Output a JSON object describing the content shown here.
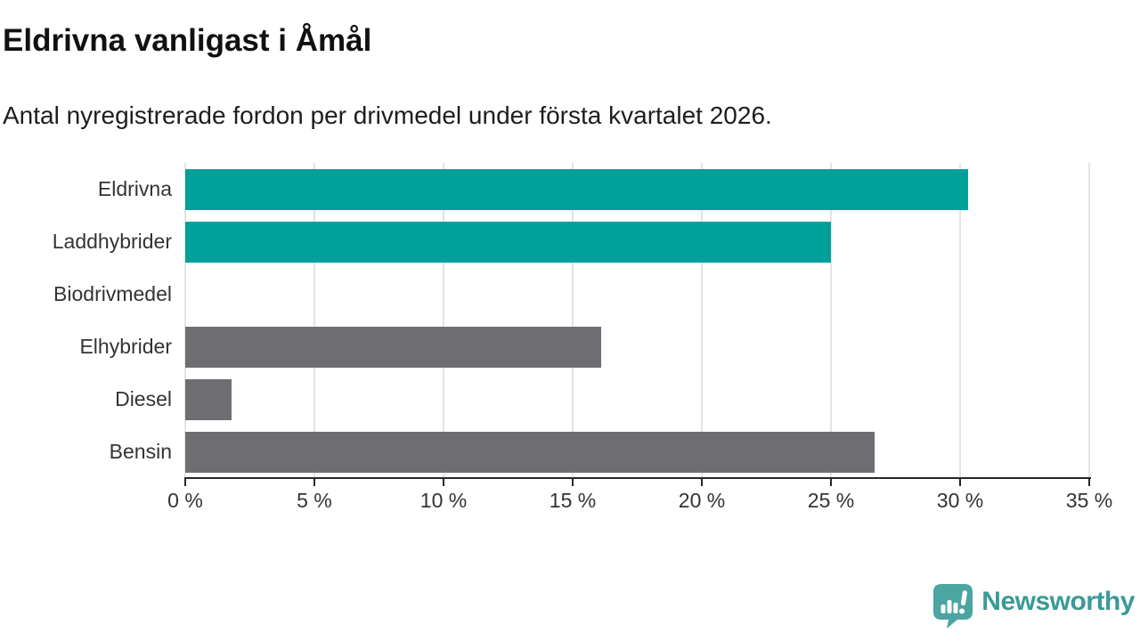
{
  "header": {
    "title": "Eldrivna vanligast i Åmål",
    "subtitle": "Antal nyregistrerade fordon per drivmedel under första kvartalet 2026."
  },
  "chart_data": {
    "type": "bar",
    "orientation": "horizontal",
    "title": "Eldrivna vanligast i Åmål",
    "subtitle": "Antal nyregistrerade fordon per drivmedel under första kvartalet 2026.",
    "categories": [
      "Eldrivna",
      "Laddhybrider",
      "Biodrivmedel",
      "Elhybrider",
      "Diesel",
      "Bensin"
    ],
    "values": [
      30.3,
      25.0,
      0,
      16.1,
      1.8,
      26.7
    ],
    "unit": "%",
    "xlim": [
      0,
      35
    ],
    "x_ticks": [
      0,
      5,
      10,
      15,
      20,
      25,
      30,
      35
    ],
    "x_tick_labels": [
      "0 %",
      "5 %",
      "10 %",
      "15 %",
      "20 %",
      "25 %",
      "30 %",
      "35 %"
    ],
    "grid": true,
    "legend": "none",
    "bar_colors": [
      "#00a09a",
      "#00a09a",
      "#6e6e72",
      "#6e6e72",
      "#6e6e72",
      "#6e6e72"
    ],
    "highlight_color": "#00a09a",
    "default_bar_color": "#6e6e72",
    "gridline_color": "#e4e4e4",
    "axis_color": "#262626",
    "label_color": "#333333"
  },
  "footer": {
    "brand": "Newsworthy",
    "brand_color": "#3a9a98",
    "logo_badge_color": "#4ba5a1",
    "logo_icon": "newsworthy-speech-bubble-bar-chart-icon"
  }
}
